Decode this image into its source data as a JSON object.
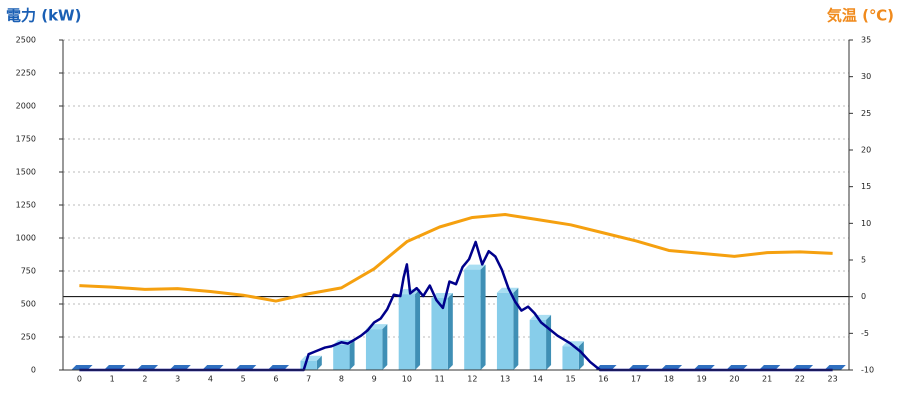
{
  "chart_data": {
    "type": "bar",
    "left_title": "電力 (kW)",
    "right_title": "気温 (℃)",
    "categories": [
      "0",
      "1",
      "2",
      "3",
      "4",
      "5",
      "6",
      "7",
      "8",
      "9",
      "10",
      "11",
      "12",
      "13",
      "14",
      "15",
      "16",
      "17",
      "18",
      "19",
      "20",
      "21",
      "22",
      "23"
    ],
    "ylim": [
      0,
      2500
    ],
    "yticks": [
      0,
      250,
      500,
      750,
      1000,
      1250,
      1500,
      1750,
      2000,
      2250,
      2500
    ],
    "y2lim": [
      -10,
      35
    ],
    "y2ticks": [
      -10,
      -5,
      0,
      5,
      10,
      15,
      20,
      25,
      30,
      35
    ],
    "grid": true,
    "series": [
      {
        "type": "bar",
        "color": "#87cdea",
        "values": [
          0,
          0,
          0,
          0,
          0,
          0,
          0,
          70,
          190,
          310,
          575,
          545,
          760,
          585,
          380,
          180,
          0,
          0,
          0,
          0,
          0,
          0,
          0,
          0
        ]
      },
      {
        "type": "line",
        "color": "#00008b",
        "x": [
          0,
          6.85,
          7.0,
          7.2,
          7.5,
          7.7,
          8.0,
          8.2,
          8.4,
          8.6,
          8.8,
          9.0,
          9.2,
          9.4,
          9.6,
          9.8,
          9.9,
          10.0,
          10.1,
          10.3,
          10.5,
          10.7,
          10.9,
          11.1,
          11.3,
          11.5,
          11.7,
          11.9,
          12.1,
          12.3,
          12.5,
          12.7,
          12.9,
          13.1,
          13.3,
          13.5,
          13.7,
          13.9,
          14.1,
          14.3,
          14.6,
          15.0,
          15.3,
          15.6,
          15.9,
          23
        ],
        "values": [
          0,
          0,
          120,
          140,
          170,
          180,
          210,
          200,
          230,
          260,
          300,
          360,
          390,
          460,
          570,
          560,
          700,
          800,
          580,
          620,
          560,
          640,
          530,
          470,
          670,
          650,
          780,
          840,
          970,
          800,
          900,
          860,
          760,
          620,
          520,
          450,
          480,
          430,
          360,
          320,
          260,
          200,
          140,
          60,
          0,
          0
        ]
      },
      {
        "type": "line",
        "axis": "y2",
        "color": "#f5a00f",
        "values": [
          1.5,
          1.3,
          1.0,
          1.1,
          0.7,
          0.2,
          -0.6,
          0.4,
          1.2,
          3.8,
          7.5,
          9.5,
          10.8,
          11.2,
          10.5,
          9.8,
          8.7,
          7.6,
          6.3,
          5.9,
          5.5,
          6.0,
          6.1,
          5.9
        ]
      }
    ]
  }
}
